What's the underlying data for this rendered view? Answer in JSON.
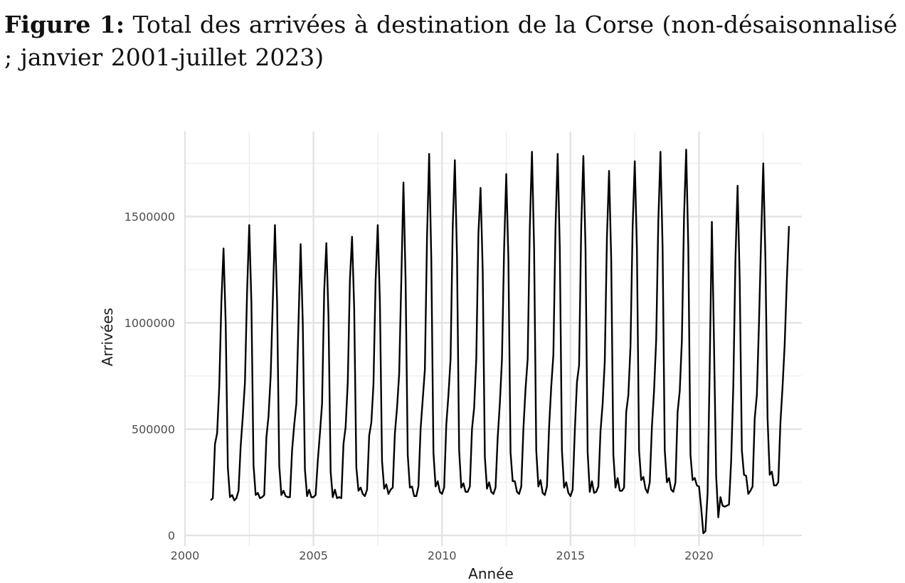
{
  "figure": {
    "label": "Figure 1:",
    "title": "Total des arrivées à destination de la Corse (non-désaisonnalisé ; janvier 2001-juillet 2023)"
  },
  "chart_data": {
    "type": "line",
    "title": "Total des arrivées à destination de la Corse (non-désaisonnalisé ; janvier 2001-juillet 2023)",
    "xlabel": "Année",
    "ylabel": "Arrivées",
    "xlim": [
      2000,
      2024
    ],
    "ylim": [
      -50000,
      1900000
    ],
    "x_ticks": [
      2000,
      2005,
      2010,
      2015,
      2020
    ],
    "y_ticks": [
      0,
      500000,
      1000000,
      1500000
    ],
    "x_tick_labels": [
      "2000",
      "2005",
      "2010",
      "2015",
      "2020"
    ],
    "y_tick_labels": [
      "0",
      "500000",
      "1000000",
      "1500000"
    ],
    "grid": true,
    "line_color": "#000000",
    "series": [
      {
        "start": "2001-01",
        "frequency": "monthly",
        "values": [
          165000,
          175000,
          430000,
          480000,
          700000,
          1100000,
          1350000,
          1000000,
          320000,
          180000,
          190000,
          165000,
          175000,
          210000,
          420000,
          560000,
          720000,
          1150000,
          1460000,
          1100000,
          330000,
          190000,
          200000,
          175000,
          180000,
          190000,
          460000,
          560000,
          750000,
          1100000,
          1460000,
          1100000,
          330000,
          190000,
          210000,
          185000,
          180000,
          180000,
          400000,
          520000,
          620000,
          1000000,
          1370000,
          1000000,
          310000,
          185000,
          215000,
          180000,
          180000,
          190000,
          350000,
          480000,
          620000,
          1150000,
          1375000,
          1030000,
          300000,
          180000,
          215000,
          175000,
          180000,
          175000,
          430000,
          510000,
          720000,
          1200000,
          1405000,
          1070000,
          320000,
          210000,
          225000,
          195000,
          185000,
          215000,
          470000,
          530000,
          710000,
          1200000,
          1460000,
          1100000,
          350000,
          220000,
          240000,
          195000,
          215000,
          225000,
          480000,
          600000,
          760000,
          1200000,
          1660000,
          1200000,
          380000,
          225000,
          230000,
          185000,
          185000,
          230000,
          500000,
          640000,
          780000,
          1400000,
          1795000,
          1300000,
          390000,
          230000,
          255000,
          205000,
          195000,
          225000,
          520000,
          660000,
          830000,
          1450000,
          1765000,
          1310000,
          400000,
          225000,
          245000,
          205000,
          205000,
          230000,
          500000,
          600000,
          830000,
          1420000,
          1635000,
          1250000,
          370000,
          220000,
          250000,
          205000,
          195000,
          225000,
          460000,
          620000,
          830000,
          1350000,
          1700000,
          1300000,
          390000,
          255000,
          255000,
          205000,
          195000,
          230000,
          500000,
          690000,
          830000,
          1450000,
          1805000,
          1350000,
          400000,
          230000,
          260000,
          200000,
          190000,
          230000,
          510000,
          700000,
          850000,
          1450000,
          1795000,
          1350000,
          400000,
          225000,
          250000,
          200000,
          185000,
          215000,
          490000,
          720000,
          800000,
          1450000,
          1785000,
          1350000,
          390000,
          205000,
          255000,
          200000,
          205000,
          230000,
          490000,
          620000,
          820000,
          1400000,
          1715000,
          1300000,
          380000,
          225000,
          270000,
          210000,
          210000,
          225000,
          580000,
          660000,
          890000,
          1450000,
          1760000,
          1350000,
          400000,
          260000,
          275000,
          220000,
          200000,
          250000,
          510000,
          680000,
          920000,
          1480000,
          1805000,
          1350000,
          400000,
          250000,
          270000,
          215000,
          205000,
          250000,
          580000,
          680000,
          920000,
          1500000,
          1815000,
          1350000,
          380000,
          260000,
          270000,
          235000,
          230000,
          130000,
          10000,
          20000,
          200000,
          800000,
          1475000,
          900000,
          280000,
          85000,
          180000,
          140000,
          135000,
          140000,
          145000,
          350000,
          700000,
          1300000,
          1645000,
          1200000,
          400000,
          285000,
          280000,
          195000,
          210000,
          230000,
          550000,
          660000,
          1000000,
          1400000,
          1750000,
          1300000,
          550000,
          285000,
          300000,
          235000,
          235000,
          250000,
          530000,
          700000,
          900000,
          1200000,
          1455000
        ]
      }
    ]
  }
}
